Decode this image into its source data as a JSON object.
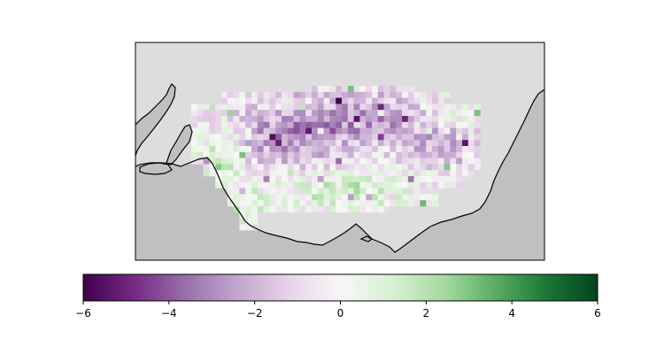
{
  "map": {
    "colors": {
      "ocean": "#dddddd",
      "land": "#c0c0c0",
      "coastline": "#000000",
      "frame": "#000000"
    }
  },
  "colorbar": {
    "min": -6,
    "max": 6,
    "colormap": "purple-white-green diverging",
    "stops": [
      "#40004b",
      "#762a83",
      "#9970ab",
      "#c2a5cf",
      "#e7d4e8",
      "#f7f7f7",
      "#d9f0d3",
      "#a6dba0",
      "#5aae61",
      "#1b7837",
      "#00441b"
    ],
    "ticks": [
      {
        "value": -6,
        "label": "−6"
      },
      {
        "value": -4,
        "label": "−4"
      },
      {
        "value": -2,
        "label": "−2"
      },
      {
        "value": 0,
        "label": "0"
      },
      {
        "value": 2,
        "label": "2"
      },
      {
        "value": 4,
        "label": "4"
      },
      {
        "value": 6,
        "label": "6"
      }
    ]
  }
}
